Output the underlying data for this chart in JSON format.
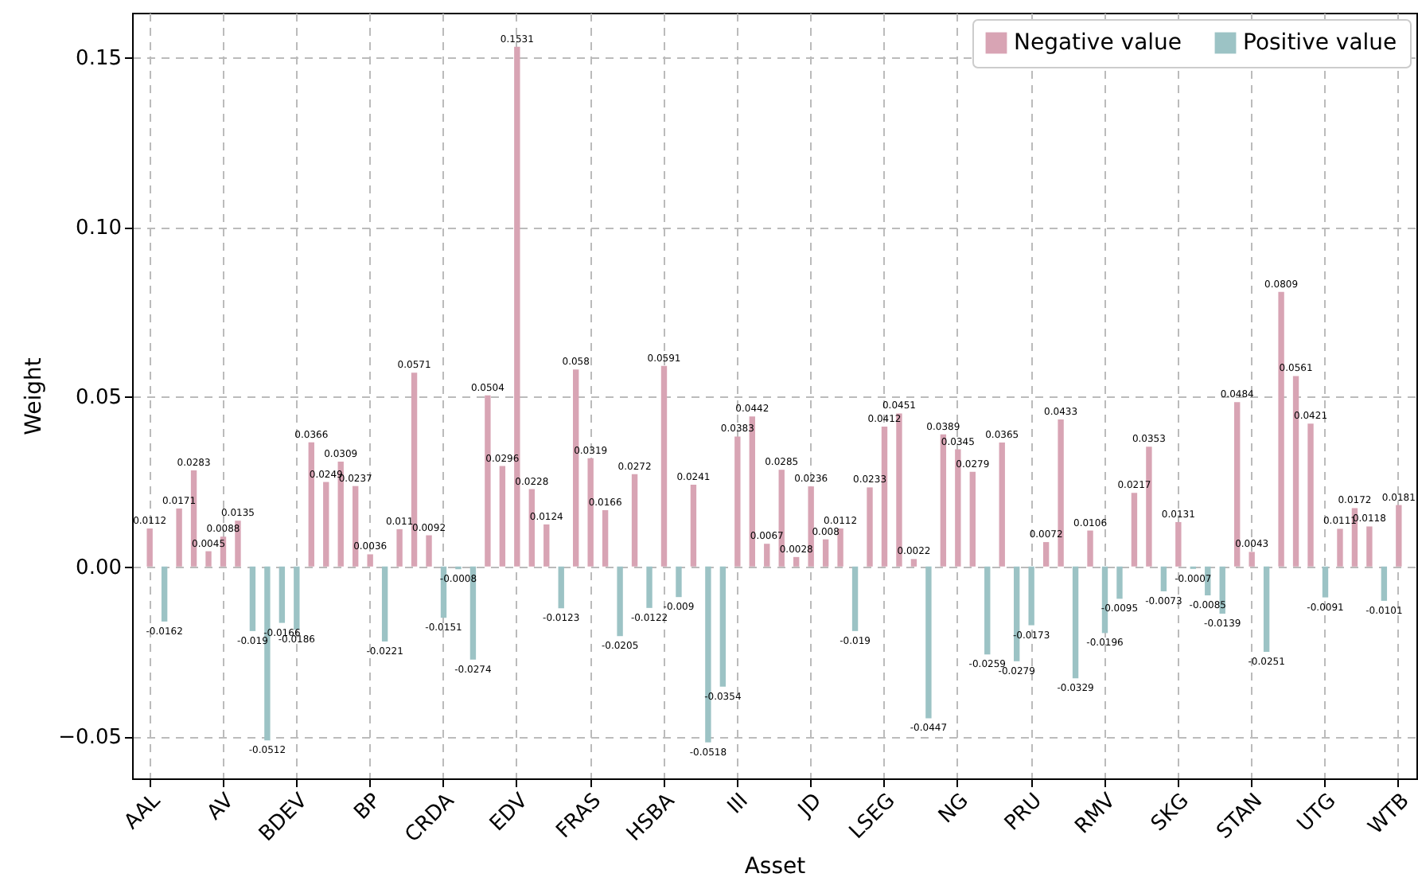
{
  "chart_data": {
    "type": "bar",
    "xlabel": "Asset",
    "ylabel": "Weight",
    "categories": [
      "AAL",
      null,
      null,
      null,
      null,
      "AV",
      null,
      null,
      null,
      null,
      "BDEV",
      null,
      null,
      null,
      null,
      "BP",
      null,
      null,
      null,
      null,
      "CRDA",
      null,
      null,
      null,
      null,
      "EDV",
      null,
      null,
      null,
      null,
      "FRAS",
      null,
      null,
      null,
      null,
      "HSBA",
      null,
      null,
      null,
      null,
      "III",
      null,
      null,
      null,
      null,
      "JD",
      null,
      null,
      null,
      null,
      "LSEG",
      null,
      null,
      null,
      null,
      "NG",
      null,
      null,
      null,
      null,
      "PRU",
      null,
      null,
      null,
      null,
      "RMV",
      null,
      null,
      null,
      null,
      "SKG",
      null,
      null,
      null,
      null,
      "STAN",
      null,
      null,
      null,
      null,
      "UTG",
      null,
      null,
      null,
      null,
      "WTB"
    ],
    "series": [
      {
        "name": "Negative value",
        "color": "#d8a4b4",
        "values": [
          0.0112,
          null,
          0.0171,
          0.0283,
          0.0045,
          0.0088,
          0.0135,
          null,
          null,
          null,
          null,
          0.0366,
          0.0249,
          0.0309,
          0.0237,
          0.0036,
          null,
          0.011,
          0.0571,
          0.0092,
          null,
          null,
          null,
          0.0504,
          0.0296,
          0.1531,
          0.0228,
          0.0124,
          null,
          0.058,
          0.0319,
          0.0166,
          null,
          0.0272,
          null,
          0.0591,
          null,
          0.0241,
          null,
          null,
          0.0383,
          0.0442,
          0.0067,
          0.0285,
          0.0028,
          0.0236,
          0.008,
          0.0112,
          null,
          0.0233,
          0.0412,
          0.0451,
          0.0022,
          null,
          0.0389,
          0.0345,
          0.0279,
          null,
          0.0365,
          null,
          null,
          0.0072,
          0.0433,
          null,
          0.0106,
          null,
          null,
          0.0217,
          0.0353,
          null,
          0.0131,
          null,
          null,
          null,
          0.0484,
          0.0043,
          null,
          0.0809,
          0.0561,
          0.0421,
          null,
          0.0111,
          0.0172,
          0.0118,
          null,
          0.0181
        ]
      },
      {
        "name": "Positive value",
        "color": "#9cc3c5",
        "values": [
          null,
          -0.0162,
          null,
          null,
          null,
          null,
          null,
          -0.019,
          -0.0512,
          -0.0166,
          -0.0186,
          null,
          null,
          null,
          null,
          null,
          -0.0221,
          null,
          null,
          null,
          -0.0151,
          -0.0008,
          -0.0274,
          null,
          null,
          null,
          null,
          null,
          -0.0123,
          null,
          null,
          null,
          -0.0205,
          null,
          -0.0122,
          null,
          -0.009,
          null,
          -0.0518,
          -0.0354,
          null,
          null,
          null,
          null,
          null,
          null,
          null,
          null,
          -0.019,
          null,
          null,
          null,
          null,
          -0.0447,
          null,
          null,
          null,
          -0.0259,
          null,
          -0.0279,
          -0.0173,
          null,
          null,
          -0.0329,
          null,
          -0.0196,
          -0.0095,
          null,
          null,
          -0.0073,
          null,
          -0.0007,
          -0.0085,
          -0.0139,
          null,
          null,
          -0.0251,
          null,
          null,
          null,
          -0.0091,
          null,
          null,
          null,
          -0.0101,
          null
        ]
      }
    ],
    "ylim": [
      -0.0624,
      0.1631
    ],
    "yticks": [
      {
        "value": -0.05,
        "label": "−0.05"
      },
      {
        "value": 0,
        "label": "0.00"
      },
      0.05,
      {
        "value": 0.1,
        "label": "0.10"
      },
      {
        "value": 0.15,
        "label": "0.15"
      }
    ],
    "grid": true,
    "legend": "top right",
    "data_labels": true
  }
}
